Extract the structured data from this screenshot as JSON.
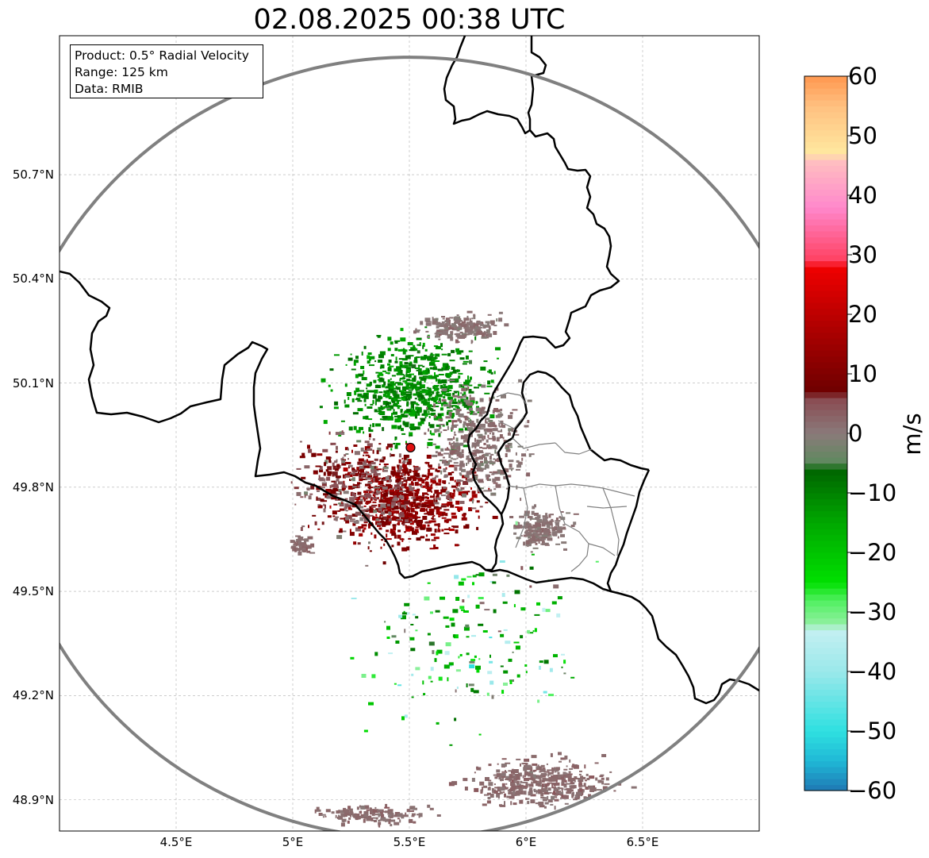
{
  "title": "02.08.2025 00:38 UTC",
  "info": {
    "product": "Product: 0.5° Radial Velocity",
    "range": "Range: 125 km",
    "data": "Data: RMIB"
  },
  "map": {
    "lon_range": [
      4.0,
      7.0
    ],
    "lat_range": [
      48.81,
      51.1
    ],
    "lon_ticks": [
      {
        "value": 4.5,
        "label": "4.5°E"
      },
      {
        "value": 5.0,
        "label": "5°E"
      },
      {
        "value": 5.5,
        "label": "5.5°E"
      },
      {
        "value": 6.0,
        "label": "6°E"
      },
      {
        "value": 6.5,
        "label": "6.5°E"
      }
    ],
    "lat_ticks": [
      {
        "value": 50.7,
        "label": "50.7°N"
      },
      {
        "value": 50.4,
        "label": "50.4°N"
      },
      {
        "value": 50.1,
        "label": "50.1°N"
      },
      {
        "value": 49.8,
        "label": "49.8°N"
      },
      {
        "value": 49.5,
        "label": "49.5°N"
      },
      {
        "value": 49.2,
        "label": "49.2°N"
      },
      {
        "value": 48.9,
        "label": "48.9°N"
      }
    ],
    "radar_site": {
      "lon": 5.505,
      "lat": 49.914
    },
    "range_ring_km": 125,
    "colors": {
      "range_ring": "#808080",
      "border": "#000000",
      "admin": "#808080",
      "site": "#e01010"
    }
  },
  "colorbar": {
    "unit": "m/s",
    "vmin": -60,
    "vmax": 60,
    "ticks": [
      {
        "value": 60,
        "label": "60"
      },
      {
        "value": 50,
        "label": "50"
      },
      {
        "value": 40,
        "label": "40"
      },
      {
        "value": 30,
        "label": "30"
      },
      {
        "value": 20,
        "label": "20"
      },
      {
        "value": 10,
        "label": "10"
      },
      {
        "value": 0,
        "label": "0"
      },
      {
        "value": -10,
        "label": "−10"
      },
      {
        "value": -20,
        "label": "−20"
      },
      {
        "value": -30,
        "label": "−30"
      },
      {
        "value": -40,
        "label": "−40"
      },
      {
        "value": -50,
        "label": "−50"
      },
      {
        "value": -60,
        "label": "−60"
      }
    ],
    "stops": [
      {
        "value": -60,
        "color": "#1f77b4"
      },
      {
        "value": -55,
        "color": "#1fb8d6"
      },
      {
        "value": -50,
        "color": "#2ee0e0"
      },
      {
        "value": -40,
        "color": "#9ae8ea"
      },
      {
        "value": -33,
        "color": "#c4f0f2"
      },
      {
        "value": -32,
        "color": "#90f0a0"
      },
      {
        "value": -28,
        "color": "#50f060"
      },
      {
        "value": -25,
        "color": "#00e000"
      },
      {
        "value": -15,
        "color": "#00a800"
      },
      {
        "value": -6,
        "color": "#006400"
      },
      {
        "value": -5,
        "color": "#5e8a5e"
      },
      {
        "value": 0,
        "color": "#8a7a7a"
      },
      {
        "value": 6,
        "color": "#8a4a50"
      },
      {
        "value": 7,
        "color": "#6e0000"
      },
      {
        "value": 18,
        "color": "#b00000"
      },
      {
        "value": 28,
        "color": "#f00000"
      },
      {
        "value": 29,
        "color": "#ff4060"
      },
      {
        "value": 38,
        "color": "#ff88cc"
      },
      {
        "value": 46,
        "color": "#ffc0c0"
      },
      {
        "value": 47,
        "color": "#ffe8a0"
      },
      {
        "value": 55,
        "color": "#ffc080"
      },
      {
        "value": 60,
        "color": "#ff9850"
      }
    ]
  }
}
